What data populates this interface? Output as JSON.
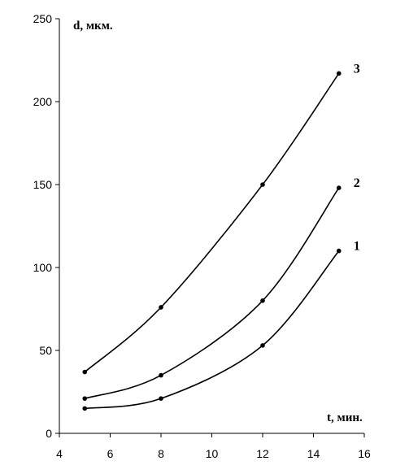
{
  "chart_data": {
    "type": "line",
    "xlabel": "t, мин.",
    "ylabel": "d, мкм.",
    "xlim": [
      4,
      16
    ],
    "ylim": [
      0,
      250
    ],
    "xticks": [
      4,
      6,
      8,
      10,
      12,
      14,
      16
    ],
    "yticks": [
      0,
      50,
      100,
      150,
      200,
      250
    ],
    "grid": false,
    "series": [
      {
        "name": "1",
        "x": [
          5,
          8,
          12,
          15
        ],
        "y": [
          15,
          21,
          53,
          110
        ]
      },
      {
        "name": "2",
        "x": [
          5,
          8,
          12,
          15
        ],
        "y": [
          21,
          35,
          80,
          148
        ]
      },
      {
        "name": "3",
        "x": [
          5,
          8,
          12,
          15
        ],
        "y": [
          37,
          76,
          150,
          217
        ]
      }
    ]
  }
}
